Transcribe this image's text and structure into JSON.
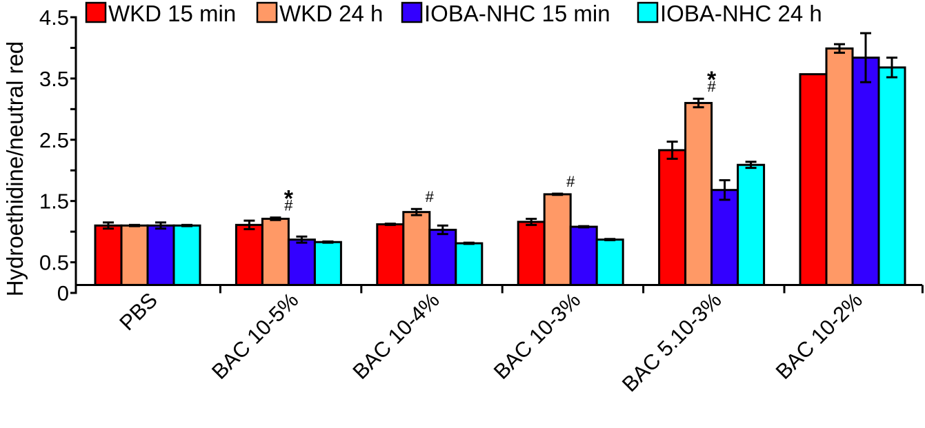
{
  "chart_data": {
    "type": "bar",
    "title": "",
    "xlabel": "",
    "ylabel": "Hydroethidine/neutral red",
    "ylim": [
      0,
      4.5
    ],
    "axis_baseline_value": 0.13,
    "yticks": [
      0,
      0.5,
      1.0,
      1.5,
      2.0,
      2.5,
      3.0,
      3.5,
      4.0,
      4.5
    ],
    "ytick_labels": [
      {
        "value": 0,
        "label": "0"
      },
      {
        "value": 0.5,
        "label": "0.5"
      },
      {
        "value": 1.5,
        "label": "1.5"
      },
      {
        "value": 2.5,
        "label": "2.5"
      },
      {
        "value": 3.5,
        "label": "3.5"
      },
      {
        "value": 4.5,
        "label": "4.5"
      }
    ],
    "grid": false,
    "legend_position": "top",
    "categories": [
      "PBS",
      "BAC 10-5%",
      "BAC 10-4%",
      "BAC 10-3%",
      "BAC 5.10-3%",
      "BAC 10-2%"
    ],
    "series": [
      {
        "name": "WKD 15 min",
        "color": "#ff0000",
        "values": [
          1.1,
          1.11,
          1.12,
          1.16,
          2.33,
          3.57
        ],
        "errors": [
          0.05,
          0.07,
          0.01,
          0.05,
          0.14,
          0.0
        ]
      },
      {
        "name": "WKD 24 h",
        "color": "#ff9966",
        "values": [
          1.1,
          1.21,
          1.32,
          1.61,
          3.1,
          3.99
        ],
        "errors": [
          0.01,
          0.02,
          0.05,
          0.01,
          0.07,
          0.07
        ]
      },
      {
        "name": "IOBA-NHC 15 min",
        "color": "#3300ff",
        "values": [
          1.1,
          0.87,
          1.03,
          1.08,
          1.68,
          3.84
        ],
        "errors": [
          0.05,
          0.05,
          0.07,
          0.01,
          0.16,
          0.4
        ]
      },
      {
        "name": "IOBA-NHC 24 h",
        "color": "#00ffff",
        "values": [
          1.1,
          0.83,
          0.81,
          0.87,
          2.09,
          3.68
        ],
        "errors": [
          0.01,
          0.01,
          0.01,
          0.01,
          0.05,
          0.16
        ]
      }
    ],
    "annotations": [
      {
        "category": "BAC 10-5%",
        "series": "WKD 24 h",
        "symbols": [
          "*",
          "#"
        ]
      },
      {
        "category": "BAC 10-4%",
        "series": "WKD 24 h",
        "symbols": [
          "#"
        ]
      },
      {
        "category": "BAC 10-3%",
        "series": "WKD 24 h",
        "symbols": [
          "#"
        ]
      },
      {
        "category": "BAC 5.10-3%",
        "series": "WKD 24 h",
        "symbols": [
          "*",
          "#"
        ]
      }
    ]
  }
}
